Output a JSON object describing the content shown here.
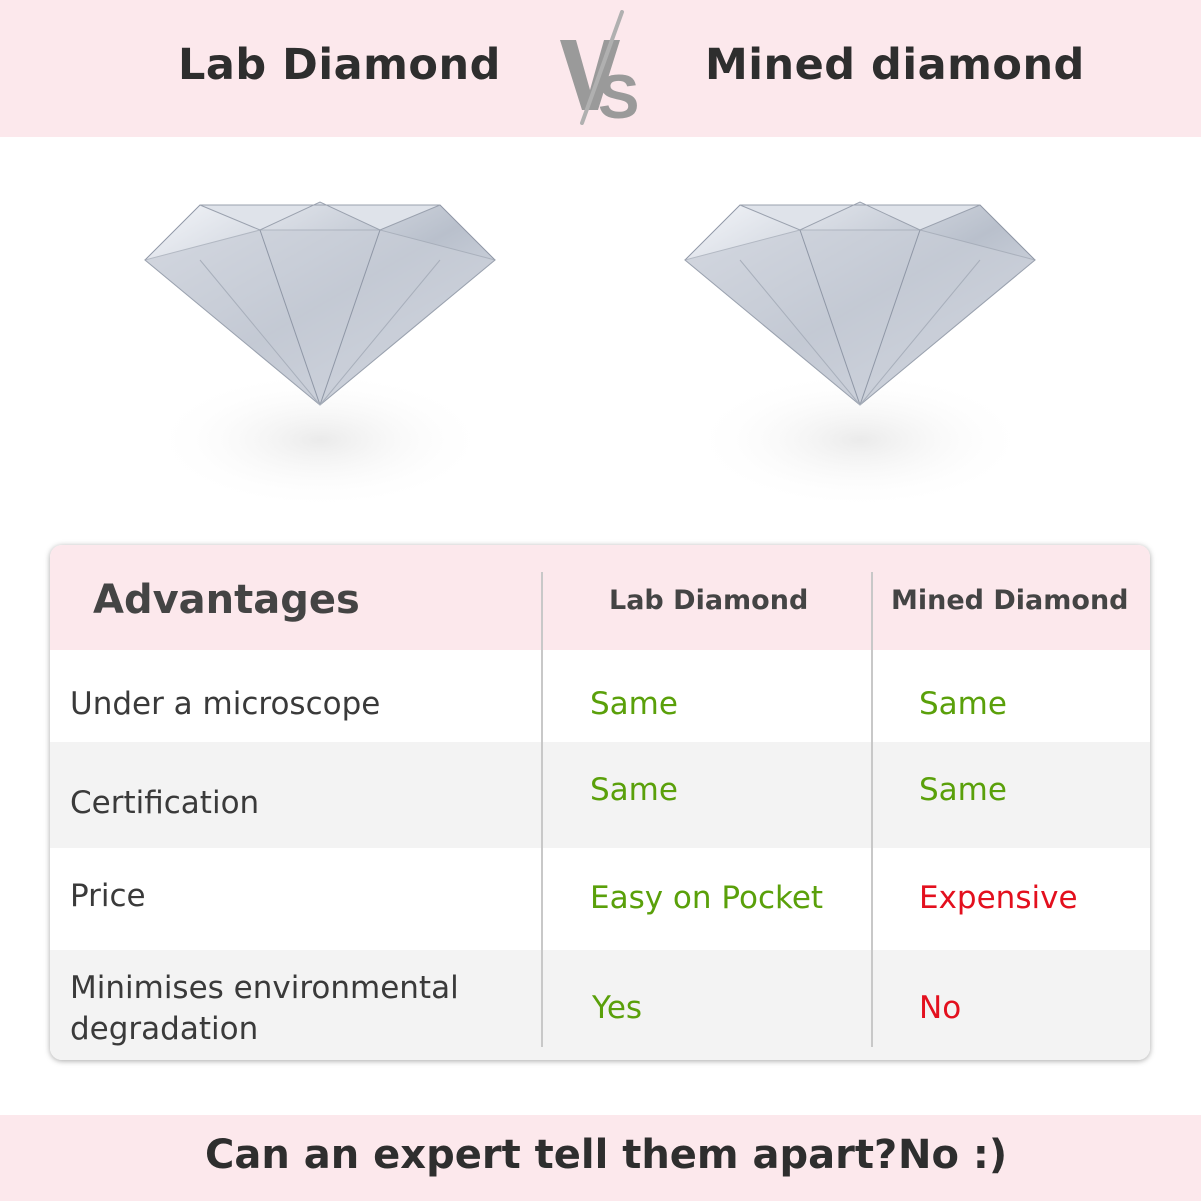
{
  "header": {
    "left_title": "Lab Diamond",
    "vs": "VS",
    "right_title": "Mined diamond"
  },
  "table": {
    "headers": [
      "Advantages",
      "Lab Diamond",
      "Mined Diamond"
    ],
    "rows": [
      {
        "label": "Under a microscope",
        "lab": "Same",
        "mined": "Same"
      },
      {
        "label": "Certification",
        "lab": "Same",
        "mined": "Same"
      },
      {
        "label": "Price",
        "lab": "Easy on Pocket",
        "mined": "Expensive"
      },
      {
        "label": "Minimises environmental degradation",
        "lab": "Yes",
        "mined": "No"
      }
    ]
  },
  "footer": {
    "question": "Can an expert tell them apart?",
    "answer": "No :)"
  },
  "colors": {
    "pink": "#fce8ec",
    "green": "#5aa00a",
    "red": "#e3101e"
  }
}
